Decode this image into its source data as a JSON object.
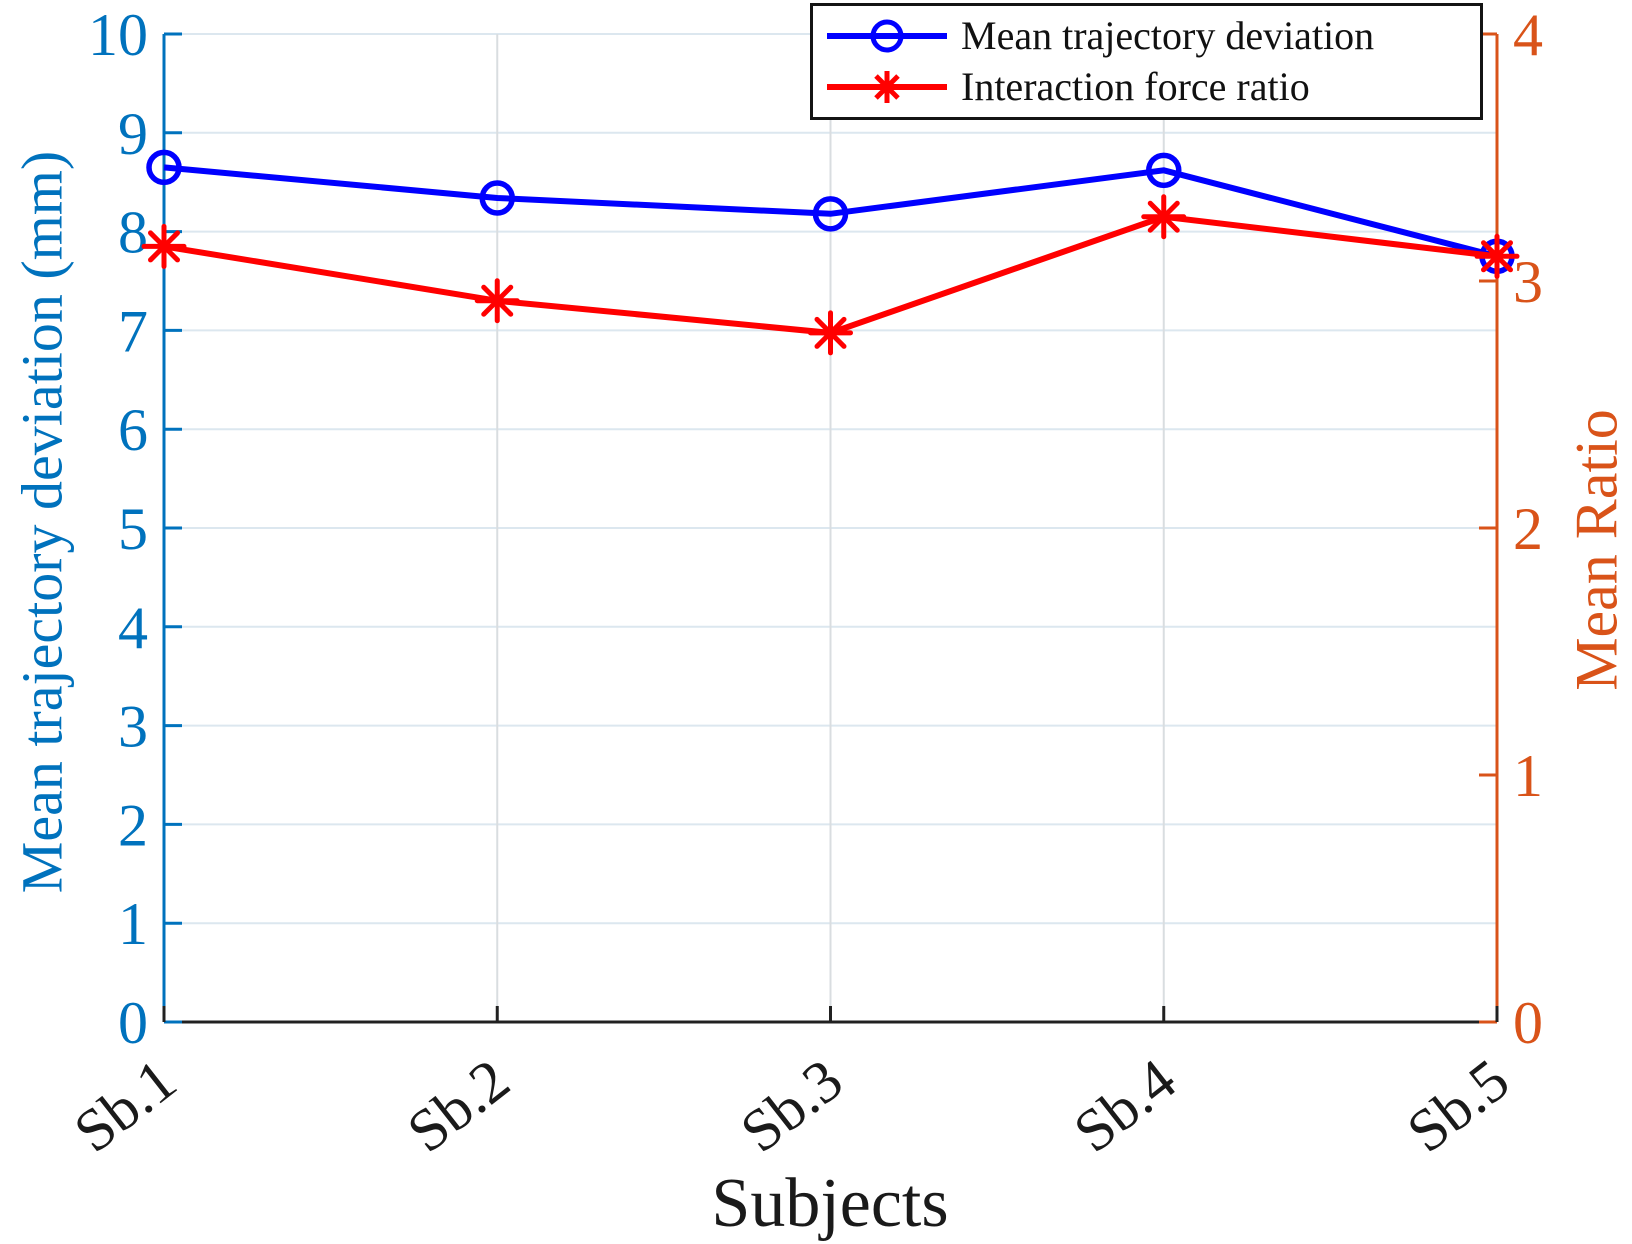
{
  "figure": {
    "xlabel": "Subjects",
    "ylabel_left": "Mean trajectory deviation (mm)",
    "ylabel_right": "Mean Ratio",
    "legend": [
      {
        "label": "Mean trajectory deviation",
        "marker": "circle"
      },
      {
        "label": "Interaction force ratio",
        "marker": "asterisk"
      }
    ]
  },
  "chart_data": {
    "type": "line",
    "categories": [
      "Sb.1",
      "Sb.2",
      "Sb.3",
      "Sb.4",
      "Sb.5"
    ],
    "series": [
      {
        "name": "Mean trajectory deviation",
        "axis": "left",
        "color": "#0000FF",
        "marker": "circle",
        "values": [
          8.65,
          8.34,
          8.18,
          8.62,
          7.75
        ]
      },
      {
        "name": "Interaction force ratio",
        "axis": "right",
        "color": "#FF0000",
        "marker": "asterisk",
        "values": [
          3.14,
          2.92,
          2.79,
          3.26,
          3.1
        ]
      }
    ],
    "title": "",
    "xlabel": "Subjects",
    "ylabel_left": "Mean trajectory deviation (mm)",
    "ylabel_right": "Mean Ratio",
    "ylim_left": [
      0,
      10
    ],
    "ylim_right": [
      0,
      4
    ],
    "yticks_left": [
      0,
      1,
      2,
      3,
      4,
      5,
      6,
      7,
      8,
      9,
      10
    ],
    "yticks_right": [
      0,
      1,
      2,
      3,
      4
    ],
    "grid": true,
    "legend_position": "top-right",
    "colors": {
      "left_axis": "#0072BD",
      "right_axis": "#D95319",
      "bottom_axis": "#212121",
      "grid_horizontal": "#dce7ef",
      "grid_vertical": "#d9dde0",
      "tick_text_left": "#0072BD",
      "tick_text_right": "#D95319",
      "tick_text_x": "#1a1a1a"
    }
  }
}
